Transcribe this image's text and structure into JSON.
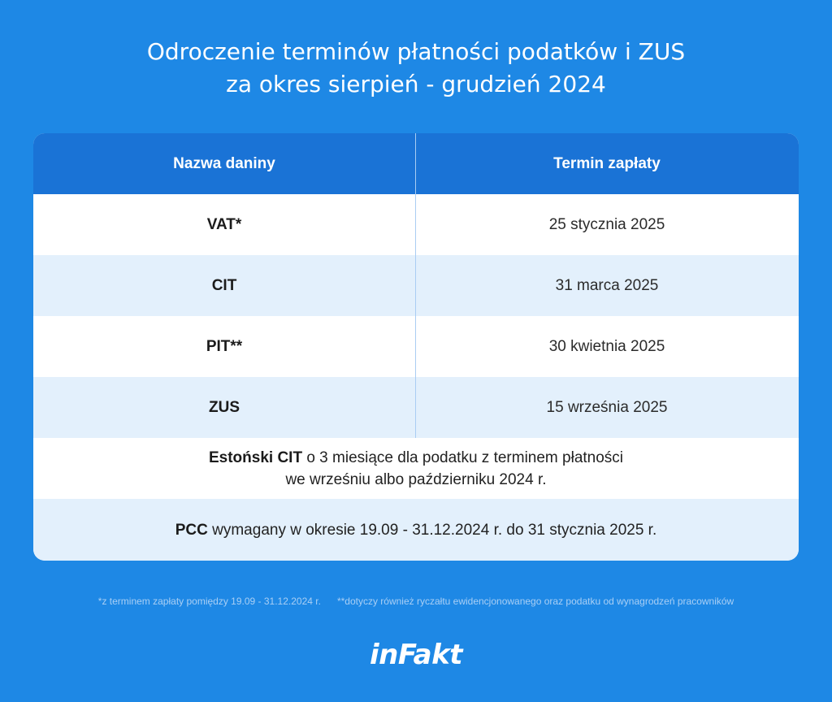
{
  "title": {
    "line1": "Odroczenie terminów płatności podatków i ZUS",
    "line2": "za okres sierpień - grudzień 2024"
  },
  "table": {
    "headers": [
      "Nazwa daniny",
      "Termin zapłaty"
    ],
    "rows": [
      {
        "name": "VAT*",
        "date": "25 stycznia 2025"
      },
      {
        "name": "CIT",
        "date": "31 marca 2025"
      },
      {
        "name": "PIT**",
        "date": "30 kwietnia 2025"
      },
      {
        "name": "ZUS",
        "date": "15 września 2025"
      }
    ],
    "estonian": {
      "bold": "Estoński CIT",
      "text1": " o 3 miesiące dla podatku z terminem płatności",
      "text2": "we wrześniu albo październiku 2024 r."
    },
    "pcc": {
      "bold": "PCC",
      "text": " wymagany w okresie 19.09 - 31.12.2024 r. do 31 stycznia 2025 r."
    }
  },
  "footnotes": {
    "note1": "*z terminem zapłaty pomiędzy 19.09 - 31.12.2024 r.",
    "note2": "**dotyczy również ryczałtu ewidencjonowanego oraz podatku od wynagrodzeń pracowników"
  },
  "brand": {
    "logo": "inFakt",
    "colors": {
      "background": "#1e88e5",
      "header": "#1a73d6",
      "row_tint": "#e3f0fc"
    }
  }
}
